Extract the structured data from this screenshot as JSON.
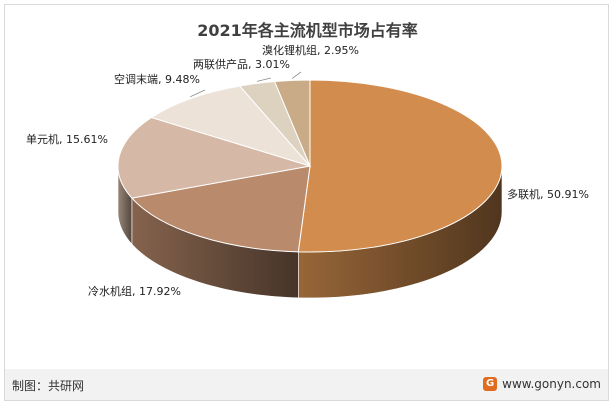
{
  "chart_data": {
    "type": "pie",
    "title": "2021年各主流机型市场占有率",
    "categories": [
      "多联机",
      "冷水机组",
      "单元机",
      "空调末端",
      "两联供产品",
      "溴化锂机组"
    ],
    "values": [
      50.91,
      17.92,
      15.61,
      9.48,
      3.01,
      2.95
    ],
    "value_labels": [
      "50.91%",
      "17.92%",
      "15.61%",
      "9.48%",
      "3.01%",
      "2.95%"
    ],
    "colors": [
      "#d28d4e",
      "#b98a6c",
      "#d5b9a6",
      "#ece2d8",
      "#ddd2c0",
      "#c9ab87"
    ],
    "style": "3d-pie"
  },
  "footer": {
    "credit": "制图：共研网",
    "site": "www.gonyn.com",
    "logo_glyph": "G"
  }
}
